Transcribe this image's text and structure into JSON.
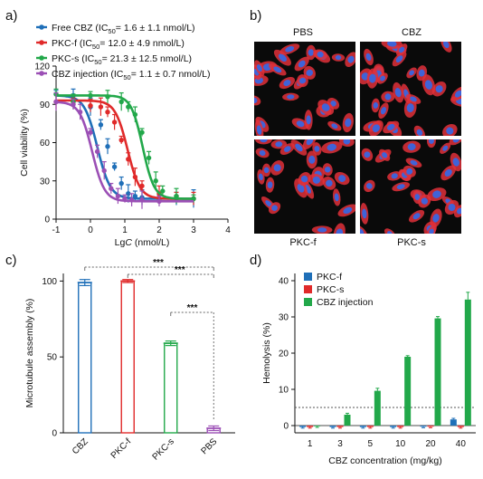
{
  "panel_labels": {
    "a": "a)",
    "b": "b)",
    "c": "c)",
    "d": "d)"
  },
  "chart_data": [
    {
      "type": "line",
      "panel": "a",
      "xlabel_main": "Lg",
      "xlabel_italic": "C",
      "xlabel_unit": " (nmol/L)",
      "ylabel": "Cell viability (%)",
      "xlim": [
        -1,
        4
      ],
      "ylim": [
        0,
        120
      ],
      "xticks": [
        -1,
        0,
        1,
        2,
        3,
        4
      ],
      "yticks": [
        0,
        30,
        60,
        90,
        120
      ],
      "series": [
        {
          "name": "Free CBZ",
          "legend_prefix": "Free CBZ (IC",
          "legend_sub": "50",
          "legend_suffix": "= 1.6 ± 1.1 nmol/L)",
          "color": "#1f6fb8",
          "ic50_log": 0.2,
          "top": 97,
          "bottom": 16,
          "hill": 2.3,
          "x": [
            -1,
            -0.5,
            0,
            0.3,
            0.5,
            0.7,
            0.9,
            1.1,
            1.3,
            1.5,
            2,
            2.5,
            3
          ],
          "y": [
            98,
            97,
            88,
            74,
            57,
            41,
            28,
            20,
            18,
            17,
            16,
            16,
            16
          ]
        },
        {
          "name": "PKC-f",
          "legend_prefix": "PKC-f (IC",
          "legend_sub": "50",
          "legend_suffix": "= 12.0 ± 4.9 nmol/L)",
          "color": "#e02a2a",
          "ic50_log": 1.08,
          "top": 93,
          "bottom": 16,
          "hill": 2.4,
          "x": [
            -1,
            -0.5,
            0,
            0.3,
            0.5,
            0.7,
            0.9,
            1.1,
            1.3,
            1.5,
            2,
            2.5,
            3
          ],
          "y": [
            92,
            92,
            89,
            88,
            84,
            76,
            62,
            47,
            33,
            26,
            20,
            18,
            16
          ]
        },
        {
          "name": "PKC-s",
          "legend_prefix": "PKC-s (IC",
          "legend_sub": "50",
          "legend_suffix": "= 21.3 ± 12.5 nmol/L)",
          "color": "#22a84a",
          "ic50_log": 1.52,
          "top": 97,
          "bottom": 16,
          "hill": 2.6,
          "x": [
            -1,
            -0.5,
            0,
            0.5,
            0.9,
            1.1,
            1.3,
            1.5,
            1.7,
            1.9,
            2.1,
            2.5,
            3
          ],
          "y": [
            98,
            92,
            97,
            96,
            92,
            88,
            82,
            68,
            48,
            30,
            22,
            18,
            16
          ]
        },
        {
          "name": "CBZ injection",
          "legend_prefix": "CBZ injection (IC",
          "legend_sub": "50",
          "legend_suffix": "= 1.1 ± 0.7 nmol/L)",
          "color": "#9b4fb5",
          "ic50_log": 0.05,
          "top": 92,
          "bottom": 14,
          "hill": 2.4,
          "x": [
            -1,
            -0.5,
            -0.3,
            0,
            0.2,
            0.4,
            0.6,
            0.8,
            1,
            1.2,
            1.5,
            2
          ],
          "y": [
            92,
            90,
            84,
            68,
            53,
            38,
            24,
            18,
            16,
            15,
            15,
            14
          ]
        }
      ]
    },
    {
      "type": "bar",
      "panel": "c",
      "ylabel": "Microtubule assembly (%)",
      "ylim": [
        0,
        105
      ],
      "yticks": [
        0,
        50,
        100
      ],
      "categories": [
        "CBZ",
        "PKC-f",
        "PKC-s",
        "PBS"
      ],
      "values": [
        99,
        100,
        59,
        3
      ],
      "errors": [
        2,
        1,
        1.5,
        1.5
      ],
      "colors": [
        "#1f6fb8",
        "#e02a2a",
        "#22a84a",
        "#9b4fb5"
      ],
      "significance": [
        {
          "from": 0,
          "to": 3,
          "label": "***"
        },
        {
          "from": 1,
          "to": 3,
          "label": "***"
        },
        {
          "from": 2,
          "to": 3,
          "label": "***"
        }
      ]
    },
    {
      "type": "bar",
      "panel": "d",
      "xlabel": "CBZ concentration (mg/kg)",
      "ylabel": "Hemolysis (%)",
      "ylim": [
        -2,
        42
      ],
      "yticks": [
        0,
        10,
        20,
        30,
        40
      ],
      "categories": [
        "1",
        "3",
        "5",
        "10",
        "20",
        "40"
      ],
      "threshold": 5,
      "series": [
        {
          "name": "PKC-f",
          "color": "#1f6fb8",
          "values": [
            -0.4,
            -0.4,
            -0.4,
            -0.4,
            -0.3,
            1.7
          ],
          "errors": [
            0.3,
            0.3,
            0.3,
            0.3,
            0.3,
            0.3
          ]
        },
        {
          "name": "PKC-s",
          "color": "#e02a2a",
          "values": [
            -0.4,
            -0.4,
            -0.4,
            -0.4,
            -0.3,
            -0.4
          ],
          "errors": [
            0.3,
            0.3,
            0.3,
            0.3,
            0.3,
            0.3
          ]
        },
        {
          "name": "CBZ injection",
          "color": "#22a84a",
          "values": [
            -0.2,
            3.0,
            9.6,
            19.0,
            29.6,
            34.8
          ],
          "errors": [
            0.3,
            0.4,
            0.7,
            0.3,
            0.5,
            2.0
          ]
        }
      ]
    }
  ],
  "micrographs": {
    "titles": [
      "PBS",
      "CBZ",
      "PKC-f",
      "PKC-s"
    ],
    "colors": {
      "membrane": "#e0303a",
      "nucleus": "#3f63d8",
      "background": "#0a0a0a"
    }
  }
}
